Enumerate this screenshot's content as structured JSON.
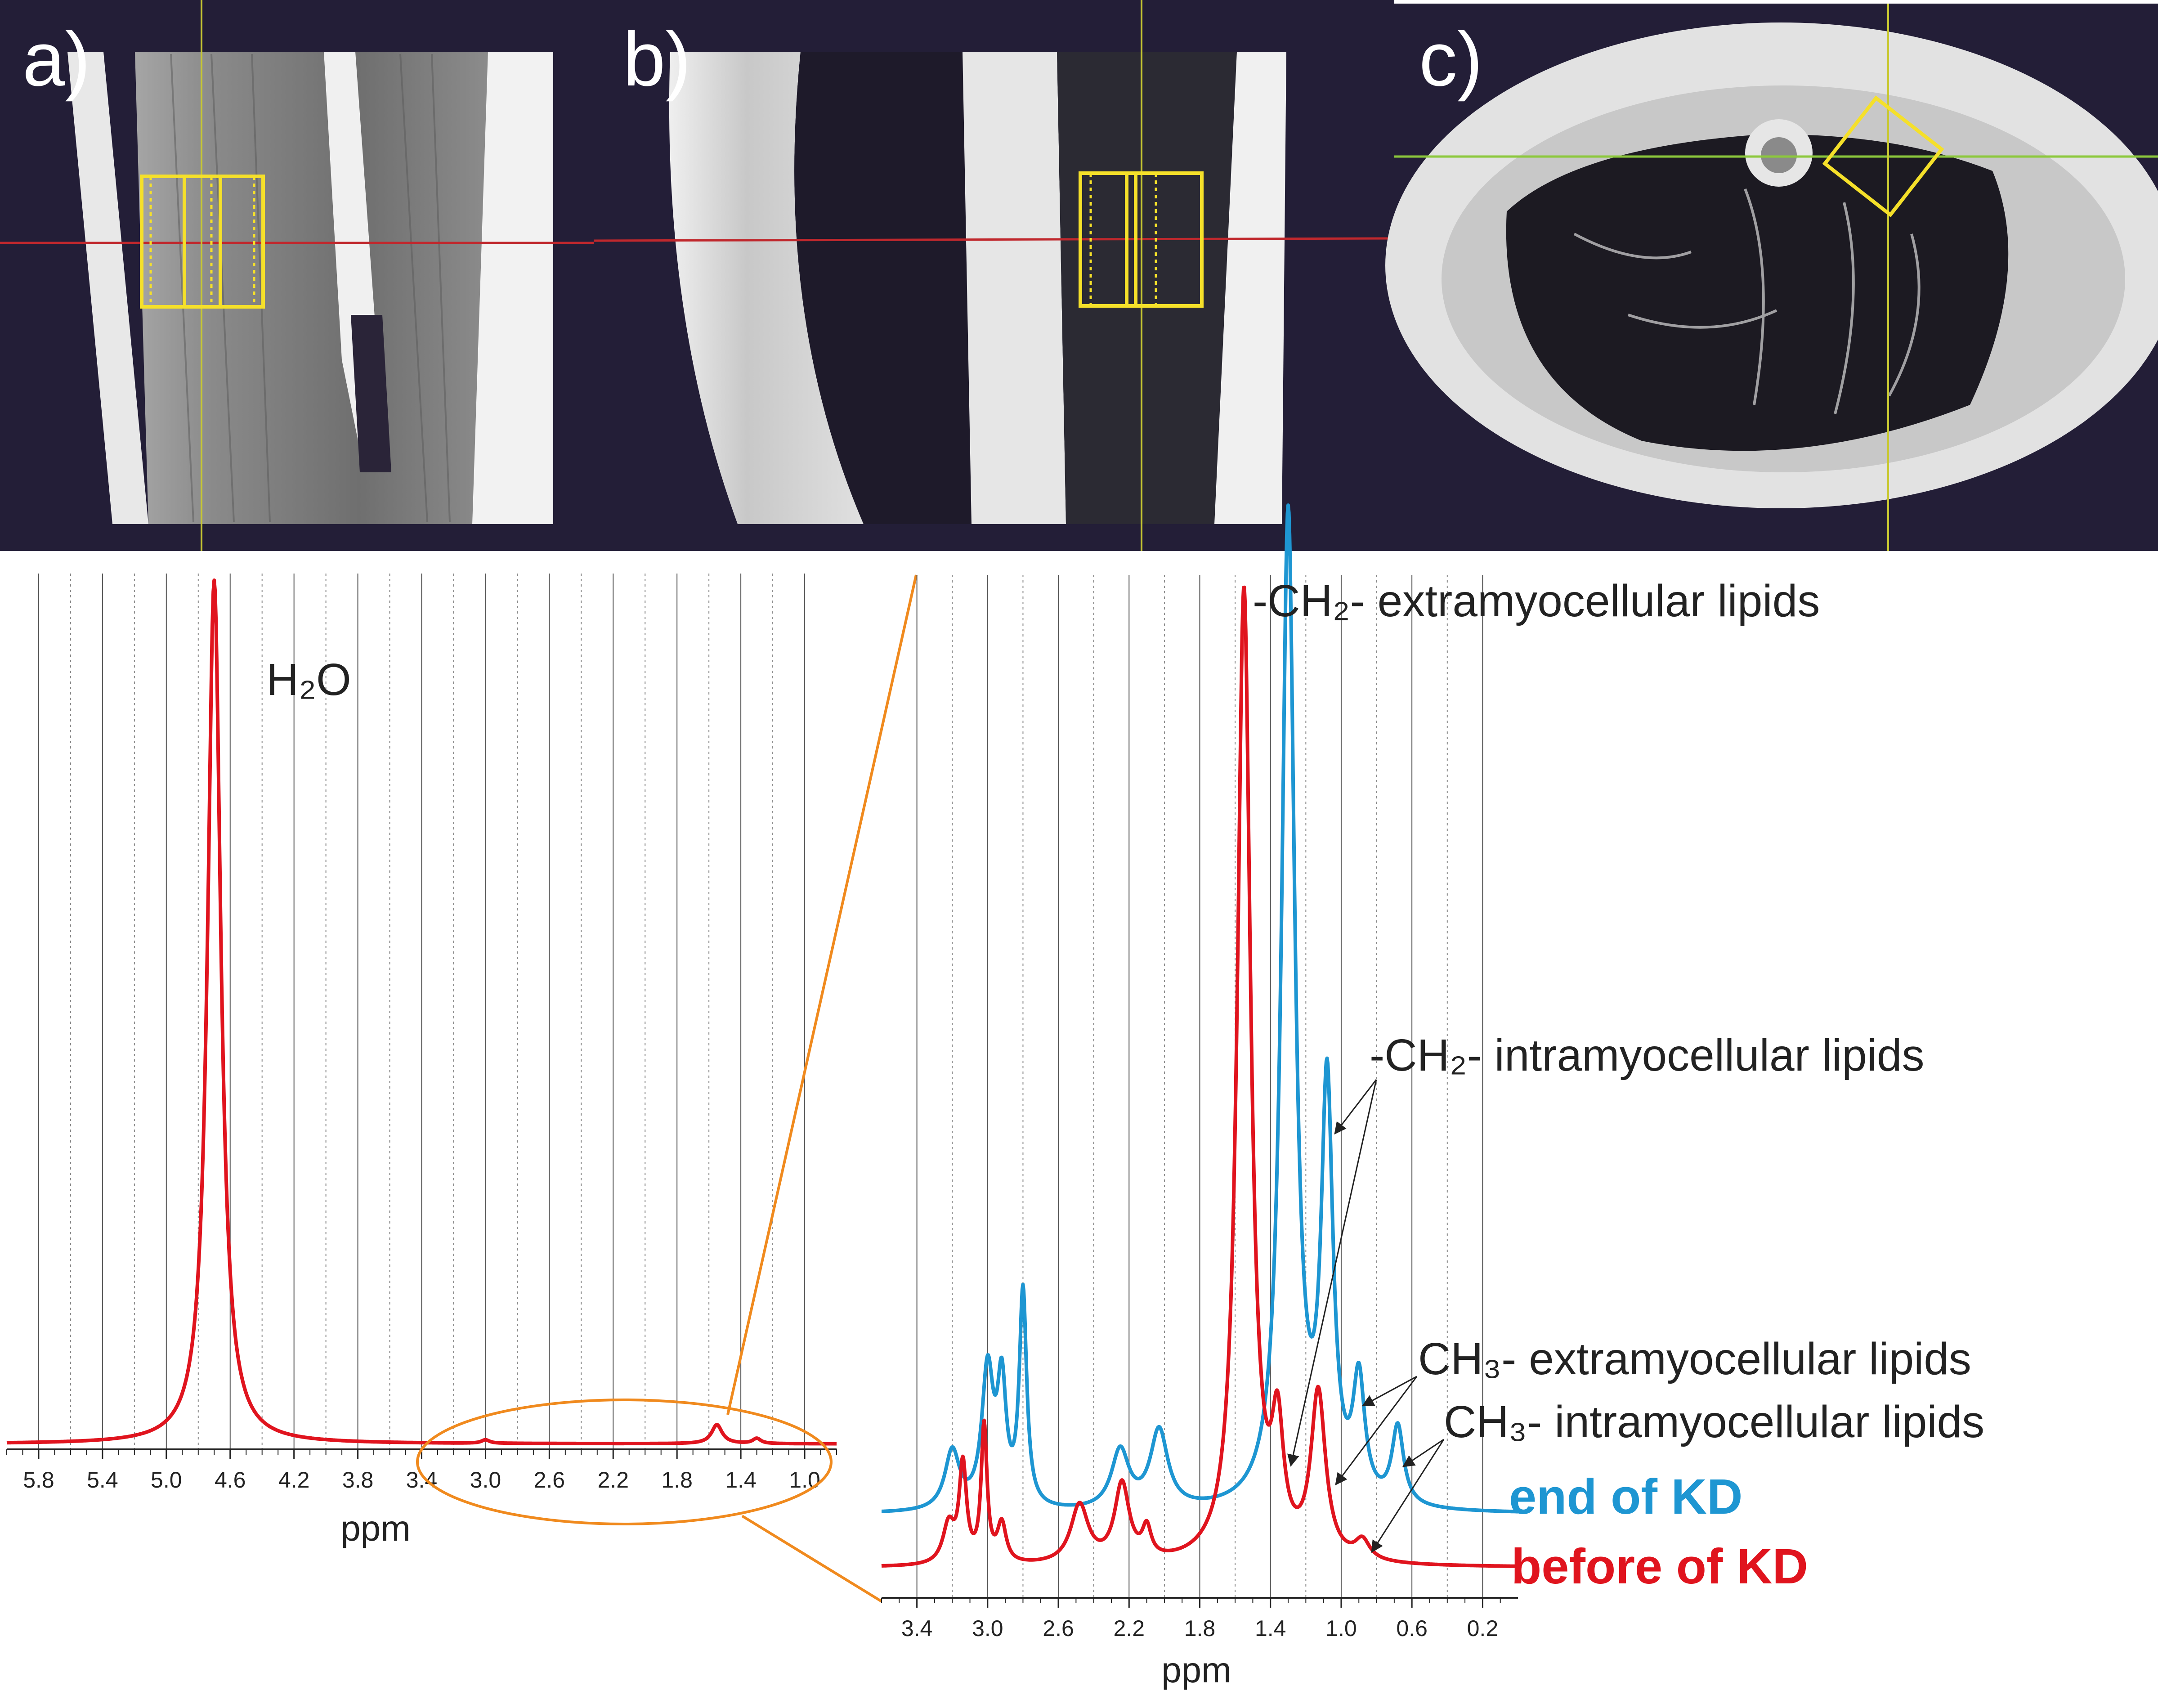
{
  "panels": {
    "a": "a)",
    "b": "b)",
    "c": "c)"
  },
  "colors": {
    "before": "#e0141e",
    "end": "#1e96d2",
    "zoom": "#f08a1e",
    "voxel": "#f5e02a",
    "crosshair_red": "#c0282d",
    "crosshair_green": "#8cc83c",
    "crosshair_yellow": "#c8c832",
    "mri_background": "#231e37"
  },
  "annotations": {
    "h2o": "H₂O",
    "ch2_emcl": "-CH₂- extramyocellular lipids",
    "ch2_imcl": "-CH₂- intramyocellular lipids",
    "ch3_emcl": "CH₃- extramyocellular lipids",
    "ch3_imcl": "CH₃-  intramyocellular lipids"
  },
  "legend": {
    "end": "end of KD",
    "before": "before of KD"
  },
  "chart_data": [
    {
      "type": "line",
      "xlabel": "ppm",
      "x_reversed": true,
      "xlim": [
        6.0,
        0.8
      ],
      "xticks": [
        "5.8",
        "5.4",
        "5.0",
        "4.6",
        "4.2",
        "3.8",
        "3.4",
        "3.0",
        "2.6",
        "2.2",
        "1.8",
        "1.4",
        "1.0"
      ],
      "xtick_values": [
        5.8,
        5.4,
        5.0,
        4.6,
        4.2,
        3.8,
        3.4,
        3.0,
        2.6,
        2.2,
        1.8,
        1.4,
        1.0
      ],
      "grid": true,
      "series": [
        {
          "color": "#e0141e",
          "peaks": [
            {
              "ppm": 4.7,
              "height": 1.0,
              "width": 0.05
            },
            {
              "ppm": 1.55,
              "height": 0.022,
              "width": 0.04
            },
            {
              "ppm": 1.3,
              "height": 0.006,
              "width": 0.03
            },
            {
              "ppm": 3.0,
              "height": 0.004,
              "width": 0.03
            }
          ]
        }
      ]
    },
    {
      "type": "line",
      "xlabel": "ppm",
      "x_reversed": true,
      "xlim": [
        3.6,
        0.0
      ],
      "xticks": [
        "3.4",
        "3.0",
        "2.6",
        "2.2",
        "1.8",
        "1.4",
        "1.0",
        "0.6",
        "0.2"
      ],
      "xtick_values": [
        3.4,
        3.0,
        2.6,
        2.2,
        1.8,
        1.4,
        1.0,
        0.6,
        0.2
      ],
      "grid": true,
      "series": [
        {
          "name": "end of KD",
          "color": "#1e96d2",
          "baseline": 0.055,
          "peaks": [
            {
              "ppm": 3.2,
              "height": 0.06,
              "width": 0.05
            },
            {
              "ppm": 3.0,
              "height": 0.14,
              "width": 0.04
            },
            {
              "ppm": 2.92,
              "height": 0.12,
              "width": 0.03
            },
            {
              "ppm": 2.8,
              "height": 0.22,
              "width": 0.025
            },
            {
              "ppm": 2.25,
              "height": 0.06,
              "width": 0.06
            },
            {
              "ppm": 2.03,
              "height": 0.08,
              "width": 0.06
            },
            {
              "ppm": 1.3,
              "height": 1.02,
              "width": 0.045
            },
            {
              "ppm": 1.08,
              "height": 0.42,
              "width": 0.04
            },
            {
              "ppm": 0.9,
              "height": 0.12,
              "width": 0.04
            },
            {
              "ppm": 0.68,
              "height": 0.08,
              "width": 0.04
            }
          ]
        },
        {
          "name": "before of KD",
          "color": "#e0141e",
          "baseline": 0.0,
          "peaks": [
            {
              "ppm": 3.22,
              "height": 0.04,
              "width": 0.04
            },
            {
              "ppm": 3.14,
              "height": 0.1,
              "width": 0.025
            },
            {
              "ppm": 3.02,
              "height": 0.14,
              "width": 0.02
            },
            {
              "ppm": 2.92,
              "height": 0.04,
              "width": 0.03
            },
            {
              "ppm": 2.48,
              "height": 0.06,
              "width": 0.06
            },
            {
              "ppm": 2.24,
              "height": 0.08,
              "width": 0.05
            },
            {
              "ppm": 2.1,
              "height": 0.03,
              "width": 0.03
            },
            {
              "ppm": 1.55,
              "height": 1.0,
              "width": 0.045
            },
            {
              "ppm": 1.36,
              "height": 0.12,
              "width": 0.04
            },
            {
              "ppm": 1.13,
              "height": 0.17,
              "width": 0.05
            },
            {
              "ppm": 0.88,
              "height": 0.02,
              "width": 0.05
            }
          ]
        }
      ]
    }
  ]
}
